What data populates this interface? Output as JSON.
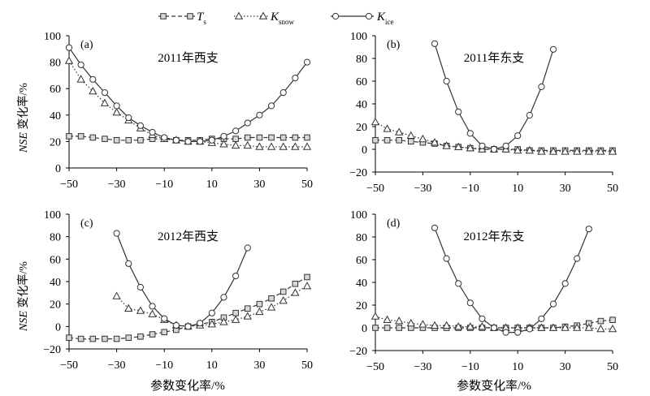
{
  "legend": [
    {
      "symbol": "T",
      "sub": "s",
      "marker": "square",
      "dash": "dashed"
    },
    {
      "symbol": "K",
      "sub": "snow",
      "marker": "triangle",
      "dash": "dotted"
    },
    {
      "symbol": "K",
      "sub": "ice",
      "marker": "circle",
      "dash": "solid"
    }
  ],
  "xlabel": "参数变化率/%",
  "ylabel_italic": "NSE",
  "ylabel_rest": " 变化率/%",
  "chart_data": [
    {
      "type": "line",
      "panel": "(a)",
      "title": "2011年西支",
      "xlim": [
        -50,
        50
      ],
      "ylim": [
        0,
        100
      ],
      "xticks": [
        -50,
        -30,
        -10,
        10,
        30,
        50
      ],
      "yticks": [
        0,
        20,
        40,
        60,
        80,
        100
      ],
      "series": [
        {
          "name": "Ts",
          "x": [
            -50,
            -45,
            -40,
            -35,
            -30,
            -25,
            -20,
            -15,
            -10,
            -5,
            0,
            5,
            10,
            15,
            20,
            25,
            30,
            35,
            40,
            45,
            50
          ],
          "y": [
            24,
            24,
            23,
            22,
            21,
            21,
            21,
            22,
            22,
            21,
            21,
            21,
            22,
            22,
            22,
            23,
            23,
            23,
            23,
            23,
            23
          ]
        },
        {
          "name": "Ksnow",
          "x": [
            -50,
            -45,
            -40,
            -35,
            -30,
            -25,
            -20,
            -15,
            -10,
            -5,
            0,
            5,
            10,
            15,
            20,
            25,
            30,
            35,
            40,
            45,
            50
          ],
          "y": [
            81,
            67,
            58,
            49,
            42,
            36,
            30,
            25,
            22,
            21,
            20,
            20,
            19,
            18,
            17,
            17,
            16,
            16,
            16,
            16,
            16
          ]
        },
        {
          "name": "Kice",
          "x": [
            -50,
            -45,
            -40,
            -35,
            -30,
            -25,
            -20,
            -15,
            -10,
            -5,
            0,
            5,
            10,
            15,
            20,
            25,
            30,
            35,
            40,
            45,
            50
          ],
          "y": [
            91,
            78,
            67,
            57,
            47,
            38,
            32,
            27,
            23,
            21,
            20,
            20,
            21,
            24,
            28,
            34,
            40,
            47,
            57,
            68,
            80
          ]
        }
      ]
    },
    {
      "type": "line",
      "panel": "(b)",
      "title": "2011年东支",
      "xlim": [
        -50,
        50
      ],
      "ylim": [
        -20,
        100
      ],
      "xticks": [
        -50,
        -30,
        -10,
        10,
        30,
        50
      ],
      "yticks": [
        -20,
        0,
        20,
        40,
        60,
        80,
        100
      ],
      "series": [
        {
          "name": "Ts",
          "x": [
            -50,
            -45,
            -40,
            -35,
            -30,
            -25,
            -20,
            -15,
            -10,
            -5,
            0,
            5,
            10,
            15,
            20,
            25,
            30,
            35,
            40,
            45,
            50
          ],
          "y": [
            8,
            8,
            8,
            7,
            6,
            5,
            3,
            2,
            1,
            0,
            0,
            0,
            0,
            -1,
            -1,
            -1,
            -1,
            -1,
            -1,
            -1,
            -1
          ]
        },
        {
          "name": "Ksnow",
          "x": [
            -50,
            -45,
            -40,
            -35,
            -30,
            -25,
            -20,
            -15,
            -10,
            -5,
            0,
            5,
            10,
            15,
            20,
            25,
            30,
            35,
            40,
            45,
            50
          ],
          "y": [
            24,
            18,
            15,
            12,
            9,
            6,
            3,
            2,
            1,
            0,
            0,
            0,
            -1,
            -1,
            -2,
            -2,
            -2,
            -2,
            -2,
            -2,
            -2
          ]
        },
        {
          "name": "Kice",
          "x": [
            -25,
            -20,
            -15,
            -10,
            -5,
            0,
            5,
            10,
            15,
            20,
            25
          ],
          "y": [
            93,
            60,
            33,
            14,
            3,
            0,
            3,
            12,
            30,
            55,
            88
          ]
        }
      ]
    },
    {
      "type": "line",
      "panel": "(c)",
      "title": "2012年西支",
      "xlim": [
        -50,
        50
      ],
      "ylim": [
        -20,
        100
      ],
      "xticks": [
        -50,
        -30,
        -10,
        10,
        30,
        50
      ],
      "yticks": [
        -20,
        0,
        20,
        40,
        60,
        80,
        100
      ],
      "series": [
        {
          "name": "Ts",
          "x": [
            -50,
            -45,
            -40,
            -35,
            -30,
            -25,
            -20,
            -15,
            -10,
            -5,
            0,
            5,
            10,
            15,
            20,
            25,
            30,
            35,
            40,
            45,
            50
          ],
          "y": [
            -10,
            -11,
            -11,
            -11,
            -11,
            -10,
            -9,
            -7,
            -5,
            -3,
            0,
            2,
            4,
            8,
            12,
            16,
            20,
            25,
            31,
            38,
            44
          ]
        },
        {
          "name": "Ksnow",
          "x": [
            -30,
            -25,
            -20,
            -15,
            -10,
            -5,
            0,
            5,
            10,
            15,
            20,
            25,
            30,
            35,
            40,
            45,
            50
          ],
          "y": [
            27,
            16,
            14,
            11,
            6,
            1,
            0,
            1,
            2,
            4,
            6,
            9,
            13,
            17,
            23,
            30,
            36
          ]
        },
        {
          "name": "Kice",
          "x": [
            -30,
            -25,
            -20,
            -15,
            -10,
            -5,
            0,
            5,
            10,
            15,
            20,
            25
          ],
          "y": [
            83,
            56,
            35,
            18,
            7,
            1,
            0,
            3,
            12,
            26,
            45,
            70
          ]
        }
      ]
    },
    {
      "type": "line",
      "panel": "(d)",
      "title": "2012年东支",
      "xlim": [
        -50,
        50
      ],
      "ylim": [
        -20,
        100
      ],
      "xticks": [
        -50,
        -30,
        -10,
        10,
        30,
        50
      ],
      "yticks": [
        -20,
        0,
        20,
        40,
        60,
        80,
        100
      ],
      "series": [
        {
          "name": "Ts",
          "x": [
            -50,
            -45,
            -40,
            -35,
            -30,
            -25,
            -20,
            -15,
            -10,
            -5,
            0,
            5,
            10,
            15,
            20,
            25,
            30,
            35,
            40,
            45,
            50
          ],
          "y": [
            0,
            0,
            0,
            0,
            0,
            0,
            0,
            0,
            0,
            0,
            0,
            0,
            0,
            0,
            0,
            0,
            1,
            2,
            4,
            6,
            7
          ]
        },
        {
          "name": "Ksnow",
          "x": [
            -50,
            -45,
            -40,
            -35,
            -30,
            -25,
            -20,
            -15,
            -10,
            -5,
            0,
            5,
            10,
            15,
            20,
            25,
            30,
            35,
            40,
            45,
            50
          ],
          "y": [
            10,
            7,
            6,
            4,
            3,
            2,
            2,
            1,
            1,
            1,
            0,
            0,
            0,
            0,
            0,
            0,
            0,
            0,
            0,
            -1,
            -1
          ]
        },
        {
          "name": "Kice",
          "x": [
            -25,
            -20,
            -15,
            -10,
            -5,
            0,
            5,
            10,
            15,
            20,
            25,
            30,
            35,
            40
          ],
          "y": [
            88,
            61,
            39,
            22,
            8,
            0,
            -4,
            -4,
            -1,
            8,
            21,
            39,
            61,
            87
          ]
        }
      ]
    }
  ]
}
